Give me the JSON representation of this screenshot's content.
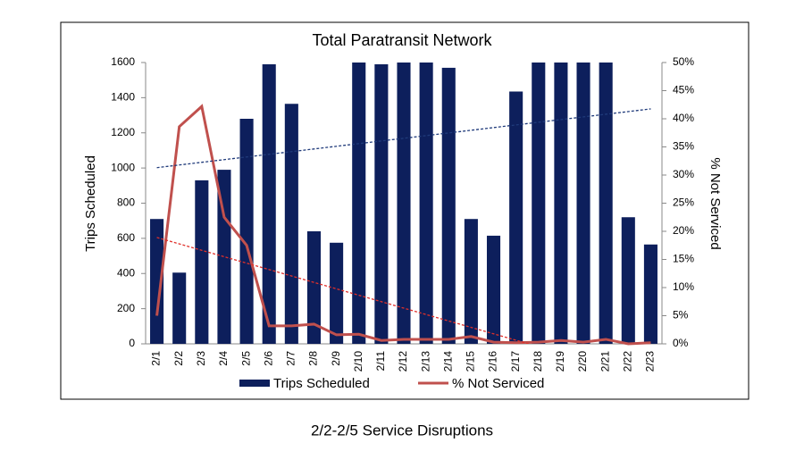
{
  "chart_data": {
    "type": "bar",
    "title": "Total Paratransit Network",
    "y_label": "Trips Scheduled",
    "y2_label": "% Not Serviced",
    "categories": [
      "2/1",
      "2/2",
      "2/3",
      "2/4",
      "2/5",
      "2/6",
      "2/7",
      "2/8",
      "2/9",
      "2/10",
      "2/11",
      "2/12",
      "2/13",
      "2/14",
      "2/15",
      "2/16",
      "2/17",
      "2/18",
      "2/19",
      "2/20",
      "2/21",
      "2/22",
      "2/23"
    ],
    "series": [
      {
        "name": "Trips Scheduled",
        "type": "bar",
        "color": "#0d1f5c",
        "trendline": true,
        "trend_color": "#1f3a7a",
        "values": [
          710,
          405,
          930,
          990,
          1280,
          1590,
          1365,
          640,
          575,
          1600,
          1590,
          1600,
          1600,
          1570,
          710,
          615,
          1435,
          1600,
          1600,
          1600,
          1600,
          720,
          565
        ]
      },
      {
        "name": "% Not Serviced",
        "type": "line",
        "axis": "y2",
        "color": "#c0504d",
        "trendline": true,
        "trend_color": "#e0302a",
        "values": [
          5,
          38.6,
          42.2,
          22.5,
          17.5,
          3.2,
          3.2,
          3.5,
          1.6,
          1.7,
          0.6,
          0.8,
          0.8,
          0.8,
          1.3,
          0.3,
          0.2,
          0.3,
          0.6,
          0.3,
          0.8,
          0,
          0.2
        ]
      }
    ],
    "ylim": [
      0,
      1600
    ],
    "yticks": [
      0,
      200,
      400,
      600,
      800,
      1000,
      1200,
      1400,
      1600
    ],
    "y2lim": [
      0,
      50
    ],
    "y2ticks": [
      {
        "value": 0,
        "label": "0%"
      },
      {
        "value": 5,
        "label": "5%"
      },
      {
        "value": 10,
        "label": "10%"
      },
      {
        "value": 15,
        "label": "15%"
      },
      {
        "value": 20,
        "label": "20%"
      },
      {
        "value": 25,
        "label": "25%"
      },
      {
        "value": 30,
        "label": "30%"
      },
      {
        "value": 35,
        "label": "35%"
      },
      {
        "value": 40,
        "label": "40%"
      },
      {
        "value": 45,
        "label": "45%"
      },
      {
        "value": 50,
        "label": "50%"
      }
    ],
    "legend": "bottom"
  },
  "caption": "2/2-2/5 Service Disruptions"
}
